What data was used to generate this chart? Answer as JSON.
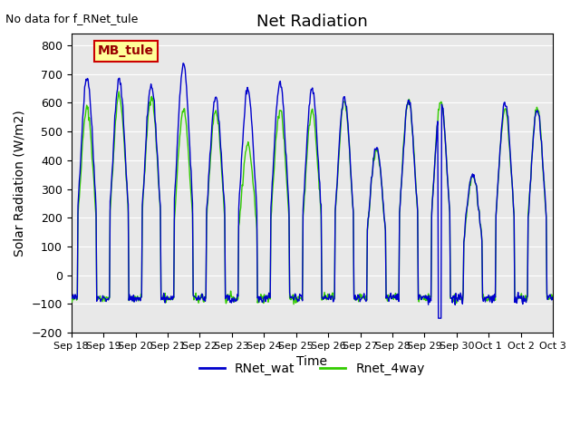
{
  "title": "Net Radiation",
  "xlabel": "Time",
  "ylabel": "Solar Radiation (W/m2)",
  "ylim": [
    -200,
    840
  ],
  "yticks": [
    -200,
    -100,
    0,
    100,
    200,
    300,
    400,
    500,
    600,
    700,
    800
  ],
  "xtick_labels": [
    "Sep 18",
    "Sep 19",
    "Sep 20",
    "Sep 21",
    "Sep 22",
    "Sep 23",
    "Sep 24",
    "Sep 25",
    "Sep 26",
    "Sep 27",
    "Sep 28",
    "Sep 29",
    "Sep 30",
    "Oct 1",
    "Oct 2",
    "Oct 3"
  ],
  "no_data_text": "No data for f_RNet_tule",
  "legend_label_text": "MB_tule",
  "line_blue": "#0000cc",
  "line_green": "#33cc00",
  "bg_color": "#e8e8e8",
  "legend_box_color": "#ffff99",
  "legend_box_edge": "#cc0000",
  "n_days": 15,
  "peak_blue": [
    690,
    680,
    660,
    730,
    620,
    650,
    670,
    650,
    620,
    440,
    610,
    605,
    355,
    598,
    578
  ],
  "peak_green": [
    580,
    625,
    625,
    575,
    575,
    455,
    575,
    575,
    605,
    440,
    610,
    605,
    345,
    580,
    578
  ],
  "night_blue": -80,
  "night_green": -80
}
